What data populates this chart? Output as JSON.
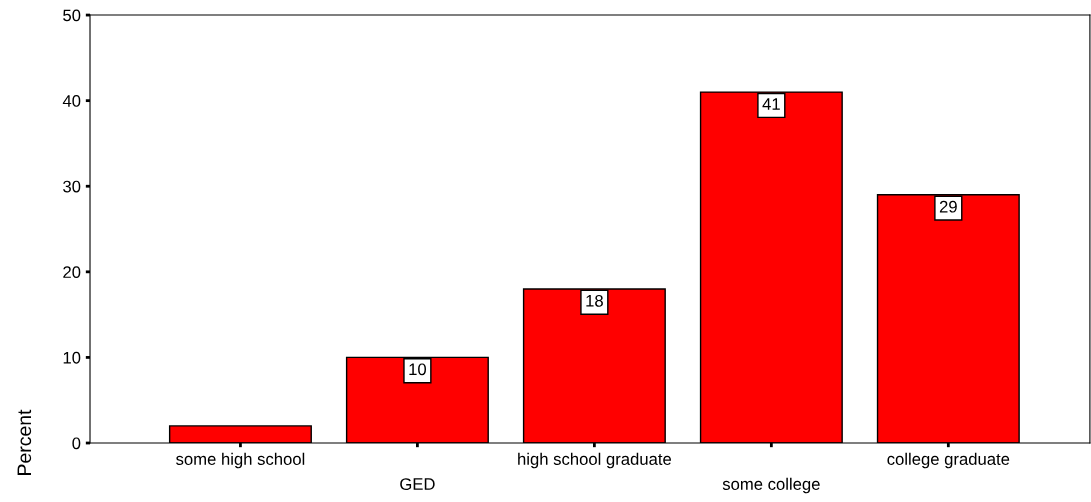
{
  "chart_data": {
    "type": "bar",
    "ylabel": "Percent",
    "categories": [
      "some high school",
      "GED",
      "high school graduate",
      "some college",
      "college graduate"
    ],
    "values": [
      2,
      10,
      18,
      41,
      29
    ],
    "value_labels": [
      null,
      "10",
      "18",
      "41",
      "29"
    ],
    "color": "#ff0000",
    "ylim": [
      0,
      50
    ],
    "yticks": [
      0,
      10,
      20,
      30,
      40,
      50
    ],
    "grid": false
  }
}
